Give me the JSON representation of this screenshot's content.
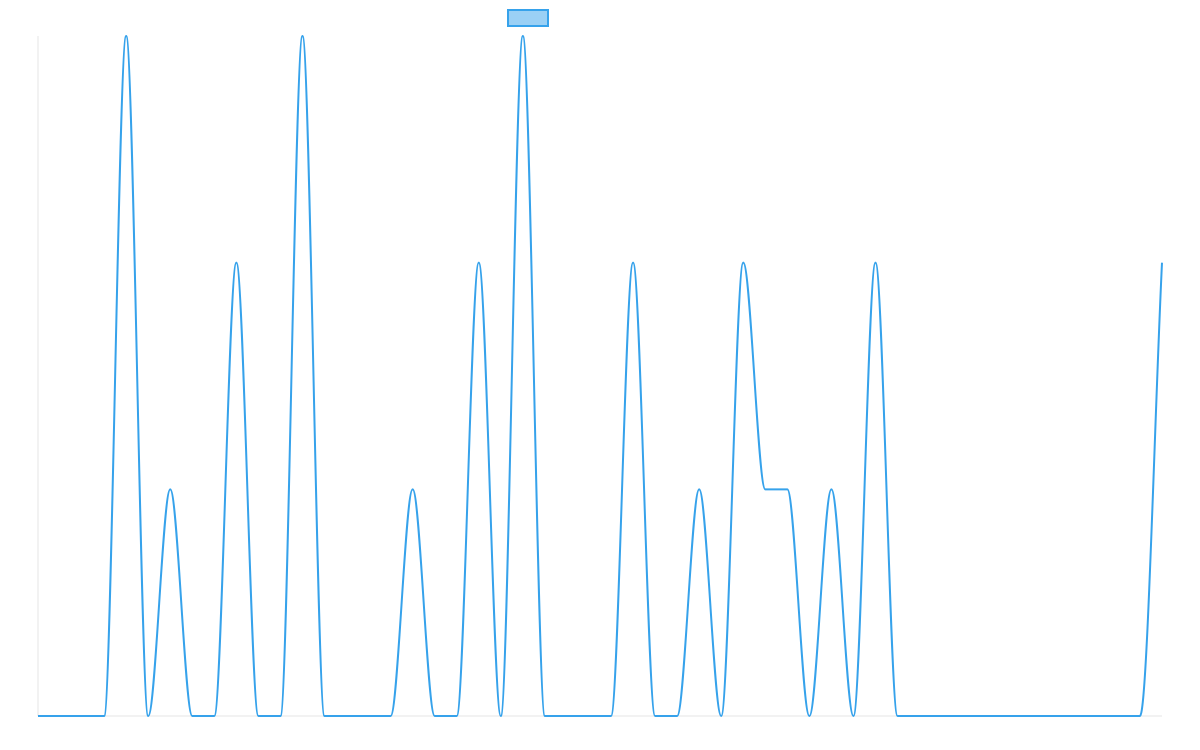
{
  "chart_data": {
    "type": "line",
    "title": "",
    "xlabel": "",
    "ylabel": "",
    "x": [
      0,
      1,
      2,
      3,
      4,
      5,
      6,
      7,
      8,
      9,
      10,
      11,
      12,
      13,
      14,
      15,
      16,
      17,
      18,
      19,
      20,
      21,
      22,
      23,
      24,
      25,
      26,
      27,
      28,
      29,
      30,
      31,
      32,
      33,
      34,
      35,
      36,
      37,
      38,
      39,
      40,
      41,
      42,
      43,
      44,
      45,
      46,
      47,
      48,
      49,
      50,
      51
    ],
    "series": [
      {
        "name": "",
        "values": [
          0,
          0,
          0,
          0,
          3,
          0,
          1,
          0,
          0,
          2,
          0,
          0,
          3,
          0,
          0,
          0,
          0,
          1,
          0,
          0,
          2,
          0,
          3,
          0,
          0,
          0,
          0,
          2,
          0,
          0,
          1,
          0,
          2,
          1,
          1,
          0,
          1,
          0,
          2,
          0,
          0,
          0,
          0,
          0,
          0,
          0,
          0,
          0,
          0,
          0,
          0,
          2
        ],
        "color": "#36A2EB",
        "fill": "#9AD0F5"
      }
    ],
    "ylim": [
      0,
      3
    ],
    "grid": false,
    "legend": "top-center"
  }
}
